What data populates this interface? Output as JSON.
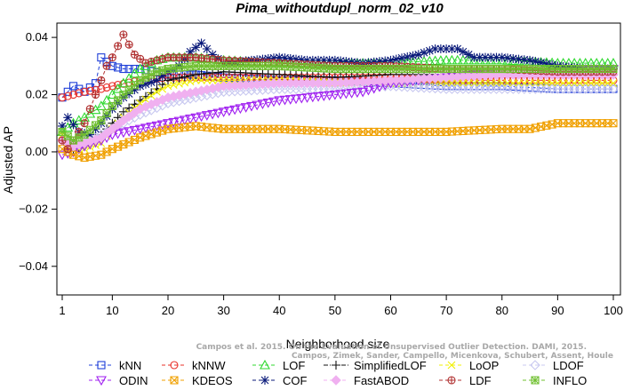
{
  "chart_data": {
    "type": "line",
    "title": "Pima_withoutdupl_norm_02_v10",
    "xlabel": "Neighborhood size",
    "ylabel": "Adjusted AP",
    "xlim": [
      1,
      100
    ],
    "ylim": [
      -0.05,
      0.045
    ],
    "xticks": [
      1,
      10,
      20,
      30,
      40,
      50,
      60,
      70,
      80,
      90,
      100
    ],
    "yticks": [
      -0.04,
      -0.02,
      0.0,
      0.02,
      0.04
    ],
    "ytick_labels": [
      "−0.04",
      "−0.02",
      "0.00",
      "0.02",
      "0.04"
    ],
    "grid": false,
    "legend_position": "bottom",
    "series": [
      {
        "name": "kNN",
        "color": "#1f3fd8",
        "marker": "square",
        "dash": "4,3",
        "points": [
          [
            1,
            0.019
          ],
          [
            3,
            0.023
          ],
          [
            5,
            0.021
          ],
          [
            7,
            0.024
          ],
          [
            8,
            0.033
          ],
          [
            10,
            0.03
          ],
          [
            12,
            0.029
          ],
          [
            15,
            0.029
          ],
          [
            20,
            0.027
          ],
          [
            25,
            0.027
          ],
          [
            30,
            0.026
          ],
          [
            40,
            0.025
          ],
          [
            50,
            0.025
          ],
          [
            60,
            0.024
          ],
          [
            70,
            0.023
          ],
          [
            80,
            0.023
          ],
          [
            90,
            0.022
          ],
          [
            100,
            0.022
          ]
        ]
      },
      {
        "name": "kNNW",
        "color": "#e8302a",
        "marker": "circle",
        "dash": "4,3",
        "points": [
          [
            1,
            0.019
          ],
          [
            3,
            0.02
          ],
          [
            5,
            0.021
          ],
          [
            8,
            0.022
          ],
          [
            10,
            0.023
          ],
          [
            15,
            0.025
          ],
          [
            20,
            0.026
          ],
          [
            30,
            0.026
          ],
          [
            40,
            0.026
          ],
          [
            50,
            0.026
          ],
          [
            60,
            0.026
          ],
          [
            70,
            0.025
          ],
          [
            80,
            0.025
          ],
          [
            90,
            0.025
          ],
          [
            100,
            0.025
          ]
        ]
      },
      {
        "name": "LOF",
        "color": "#2fd82f",
        "marker": "triangle",
        "dash": "4,3",
        "points": [
          [
            1,
            0.007
          ],
          [
            3,
            0.01
          ],
          [
            5,
            0.012
          ],
          [
            8,
            0.016
          ],
          [
            10,
            0.02
          ],
          [
            12,
            0.024
          ],
          [
            15,
            0.029
          ],
          [
            18,
            0.032
          ],
          [
            20,
            0.033
          ],
          [
            25,
            0.033
          ],
          [
            30,
            0.032
          ],
          [
            40,
            0.031
          ],
          [
            50,
            0.031
          ],
          [
            60,
            0.031
          ],
          [
            70,
            0.032
          ],
          [
            80,
            0.032
          ],
          [
            90,
            0.031
          ],
          [
            100,
            0.031
          ]
        ]
      },
      {
        "name": "SimplifiedLOF",
        "color": "#111111",
        "marker": "plus",
        "dash": "5,2,1,2",
        "points": [
          [
            1,
            0.004
          ],
          [
            3,
            0.001
          ],
          [
            5,
            0.002
          ],
          [
            8,
            0.006
          ],
          [
            10,
            0.01
          ],
          [
            12,
            0.014
          ],
          [
            15,
            0.018
          ],
          [
            18,
            0.022
          ],
          [
            20,
            0.025
          ],
          [
            25,
            0.027
          ],
          [
            30,
            0.028
          ],
          [
            40,
            0.027
          ],
          [
            50,
            0.026
          ],
          [
            60,
            0.027
          ],
          [
            70,
            0.027
          ],
          [
            80,
            0.027
          ],
          [
            90,
            0.027
          ],
          [
            100,
            0.027
          ]
        ]
      },
      {
        "name": "LoOP",
        "color": "#f0f000",
        "marker": "x",
        "dash": "4,3",
        "points": [
          [
            1,
            0.006
          ],
          [
            3,
            0.001
          ],
          [
            5,
            0.001
          ],
          [
            8,
            0.003
          ],
          [
            10,
            0.008
          ],
          [
            12,
            0.012
          ],
          [
            15,
            0.017
          ],
          [
            18,
            0.021
          ],
          [
            20,
            0.023
          ],
          [
            25,
            0.025
          ],
          [
            30,
            0.025
          ],
          [
            40,
            0.025
          ],
          [
            50,
            0.024
          ],
          [
            60,
            0.024
          ],
          [
            70,
            0.024
          ],
          [
            80,
            0.024
          ],
          [
            90,
            0.024
          ],
          [
            100,
            0.024
          ]
        ]
      },
      {
        "name": "LDOF",
        "color": "#c8c8f0",
        "marker": "diamond",
        "dash": "4,3",
        "points": [
          [
            1,
            0.004
          ],
          [
            3,
            0.003
          ],
          [
            5,
            0.004
          ],
          [
            8,
            0.006
          ],
          [
            10,
            0.008
          ],
          [
            12,
            0.01
          ],
          [
            15,
            0.013
          ],
          [
            20,
            0.017
          ],
          [
            25,
            0.019
          ],
          [
            30,
            0.021
          ],
          [
            40,
            0.022
          ],
          [
            50,
            0.022
          ],
          [
            60,
            0.023
          ],
          [
            70,
            0.022
          ],
          [
            80,
            0.022
          ],
          [
            90,
            0.022
          ],
          [
            100,
            0.022
          ]
        ]
      },
      {
        "name": "ODIN",
        "color": "#a020f0",
        "marker": "triangle-down",
        "dash": "4,3",
        "points": [
          [
            1,
            -0.001
          ],
          [
            3,
            0.0
          ],
          [
            5,
            0.002
          ],
          [
            8,
            0.004
          ],
          [
            10,
            0.006
          ],
          [
            15,
            0.008
          ],
          [
            20,
            0.01
          ],
          [
            25,
            0.012
          ],
          [
            30,
            0.014
          ],
          [
            35,
            0.016
          ],
          [
            40,
            0.018
          ],
          [
            45,
            0.019
          ],
          [
            50,
            0.02
          ],
          [
            55,
            0.021
          ],
          [
            60,
            0.024
          ],
          [
            65,
            0.025
          ],
          [
            70,
            0.026
          ],
          [
            75,
            0.027
          ],
          [
            80,
            0.027
          ],
          [
            90,
            0.028
          ],
          [
            100,
            0.029
          ]
        ]
      },
      {
        "name": "KDEOS",
        "color": "#f0a000",
        "marker": "square-x",
        "dash": "4,3",
        "points": [
          [
            1,
            0.001
          ],
          [
            3,
            -0.001
          ],
          [
            5,
            -0.002
          ],
          [
            8,
            -0.001
          ],
          [
            10,
            0.001
          ],
          [
            15,
            0.005
          ],
          [
            20,
            0.008
          ],
          [
            25,
            0.009
          ],
          [
            30,
            0.008
          ],
          [
            40,
            0.008
          ],
          [
            50,
            0.007
          ],
          [
            60,
            0.007
          ],
          [
            70,
            0.007
          ],
          [
            80,
            0.008
          ],
          [
            85,
            0.008
          ],
          [
            90,
            0.01
          ],
          [
            95,
            0.01
          ],
          [
            100,
            0.01
          ]
        ]
      },
      {
        "name": "COF",
        "color": "#0a1a7a",
        "marker": "asterisk",
        "dash": "4,3",
        "points": [
          [
            1,
            0.009
          ],
          [
            2,
            0.012
          ],
          [
            4,
            0.007
          ],
          [
            6,
            0.006
          ],
          [
            8,
            0.01
          ],
          [
            10,
            0.015
          ],
          [
            12,
            0.019
          ],
          [
            15,
            0.023
          ],
          [
            18,
            0.025
          ],
          [
            20,
            0.028
          ],
          [
            22,
            0.03
          ],
          [
            24,
            0.035
          ],
          [
            26,
            0.038
          ],
          [
            28,
            0.034
          ],
          [
            30,
            0.031
          ],
          [
            35,
            0.032
          ],
          [
            40,
            0.033
          ],
          [
            45,
            0.032
          ],
          [
            50,
            0.032
          ],
          [
            55,
            0.031
          ],
          [
            60,
            0.032
          ],
          [
            65,
            0.034
          ],
          [
            68,
            0.036
          ],
          [
            72,
            0.036
          ],
          [
            75,
            0.033
          ],
          [
            80,
            0.033
          ],
          [
            85,
            0.032
          ],
          [
            90,
            0.03
          ],
          [
            95,
            0.029
          ],
          [
            100,
            0.029
          ]
        ]
      },
      {
        "name": "FastABOD",
        "color": "#f0b0f0",
        "marker": "diamond-filled",
        "dash": "4,3",
        "points": [
          [
            1,
            0.004
          ],
          [
            3,
            0.002
          ],
          [
            5,
            0.003
          ],
          [
            8,
            0.005
          ],
          [
            10,
            0.008
          ],
          [
            12,
            0.011
          ],
          [
            15,
            0.015
          ],
          [
            20,
            0.019
          ],
          [
            25,
            0.021
          ],
          [
            30,
            0.023
          ],
          [
            40,
            0.024
          ],
          [
            50,
            0.024
          ],
          [
            60,
            0.025
          ],
          [
            70,
            0.026
          ],
          [
            80,
            0.027
          ],
          [
            90,
            0.027
          ],
          [
            100,
            0.027
          ]
        ]
      },
      {
        "name": "LDF",
        "color": "#b03030",
        "marker": "circle-plus",
        "dash": "4,3",
        "points": [
          [
            1,
            0.004
          ],
          [
            2,
            0.001
          ],
          [
            3,
            0.004
          ],
          [
            5,
            0.01
          ],
          [
            7,
            0.02
          ],
          [
            9,
            0.03
          ],
          [
            10,
            0.033
          ],
          [
            11,
            0.037
          ],
          [
            12,
            0.041
          ],
          [
            14,
            0.034
          ],
          [
            16,
            0.031
          ],
          [
            18,
            0.032
          ],
          [
            20,
            0.033
          ],
          [
            25,
            0.033
          ],
          [
            30,
            0.032
          ],
          [
            40,
            0.031
          ],
          [
            50,
            0.03
          ],
          [
            60,
            0.03
          ],
          [
            70,
            0.029
          ],
          [
            80,
            0.029
          ],
          [
            90,
            0.028
          ],
          [
            100,
            0.028
          ]
        ]
      },
      {
        "name": "INFLO",
        "color": "#70c030",
        "marker": "square-cross",
        "dash": "4,3",
        "points": [
          [
            1,
            0.007
          ],
          [
            3,
            0.004
          ],
          [
            5,
            0.006
          ],
          [
            8,
            0.011
          ],
          [
            10,
            0.016
          ],
          [
            12,
            0.02
          ],
          [
            15,
            0.025
          ],
          [
            18,
            0.028
          ],
          [
            20,
            0.029
          ],
          [
            25,
            0.03
          ],
          [
            30,
            0.03
          ],
          [
            40,
            0.03
          ],
          [
            50,
            0.029
          ],
          [
            60,
            0.029
          ],
          [
            70,
            0.029
          ],
          [
            80,
            0.029
          ],
          [
            90,
            0.029
          ],
          [
            100,
            0.029
          ]
        ]
      }
    ]
  },
  "watermark": {
    "line1": "Campos et al. 2015. On the Evaluation of Unsupervised Outlier Detection. DAMI, 2015.",
    "line2": "Campos, Zimek, Sander, Campello, Micenkova, Schubert, Assent, Houle"
  }
}
